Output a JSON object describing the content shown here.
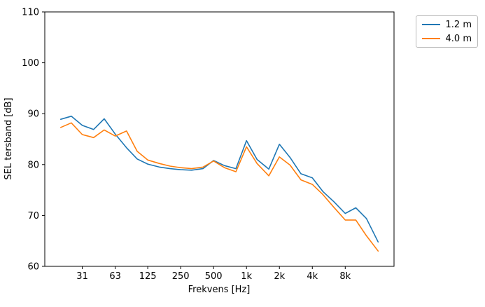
{
  "figure": {
    "xlabel": "Frekvens [Hz]",
    "ylabel": "SEL tersband [dB]"
  },
  "legend": {
    "items": [
      {
        "label": "1.2 m",
        "color": "#1f77b4"
      },
      {
        "label": "4.0 m",
        "color": "#ff7f0e"
      }
    ]
  },
  "chart_data": {
    "type": "line",
    "title": "",
    "xlabel": "Frekvens [Hz]",
    "ylabel": "SEL tersband [dB]",
    "x_scale": "log",
    "grid": false,
    "legend_position": "outside upper right",
    "xlim": [
      14.3,
      22352
    ],
    "ylim": [
      60,
      110
    ],
    "x": [
      20,
      25,
      31.5,
      40,
      50,
      63,
      80,
      100,
      125,
      160,
      200,
      250,
      315,
      400,
      500,
      630,
      800,
      1000,
      1250,
      1600,
      2000,
      2500,
      3150,
      4000,
      5000,
      6300,
      8000,
      10000,
      12500,
      16000
    ],
    "series": [
      {
        "name": "1.2 m",
        "color": "#1f77b4",
        "values": [
          88.9,
          89.5,
          87.7,
          86.9,
          89.0,
          86.0,
          83.3,
          81.1,
          80.1,
          79.5,
          79.2,
          79.0,
          78.9,
          79.2,
          80.8,
          79.8,
          79.2,
          84.7,
          81.0,
          79.1,
          84.0,
          81.4,
          78.2,
          77.4,
          74.7,
          72.7,
          70.4,
          71.5,
          69.4,
          64.8
        ]
      },
      {
        "name": "4.0 m",
        "color": "#ff7f0e",
        "values": [
          87.3,
          88.2,
          85.9,
          85.3,
          86.8,
          85.6,
          86.6,
          82.6,
          80.9,
          80.2,
          79.7,
          79.4,
          79.2,
          79.5,
          80.7,
          79.4,
          78.6,
          83.5,
          80.2,
          77.8,
          81.5,
          79.9,
          77.0,
          76.1,
          74.1,
          71.6,
          69.1,
          69.1,
          66.0,
          63.0
        ]
      }
    ],
    "xticks": {
      "values": [
        31.5,
        63,
        125,
        250,
        500,
        1000,
        2000,
        4000,
        8000
      ],
      "labels": [
        "31",
        "63",
        "125",
        "250",
        "500",
        "1k",
        "2k",
        "4k",
        "8k"
      ]
    },
    "yticks": {
      "values": [
        60,
        70,
        80,
        90,
        100,
        110
      ],
      "labels": [
        "60",
        "70",
        "80",
        "90",
        "100",
        "110"
      ]
    }
  }
}
